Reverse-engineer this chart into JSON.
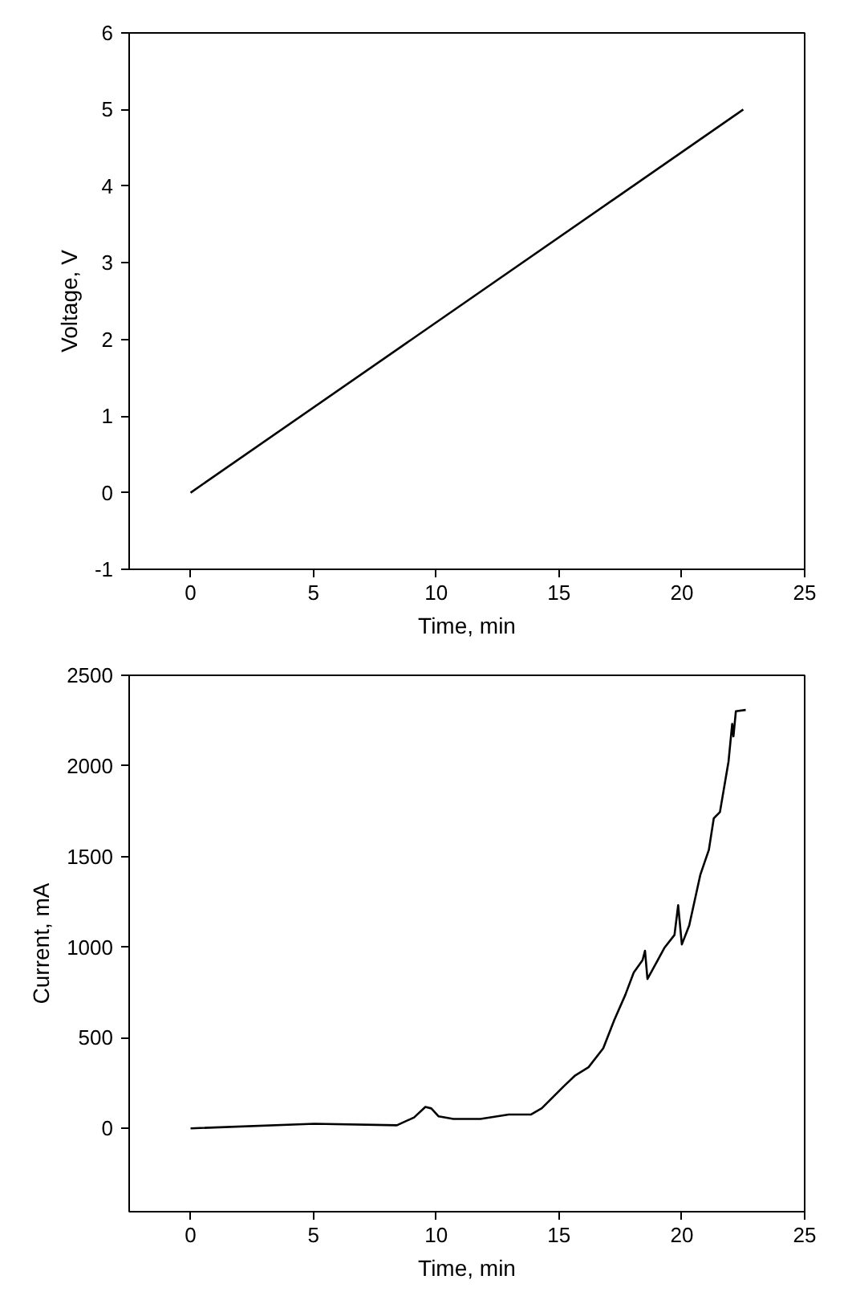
{
  "chart_data": [
    {
      "type": "line",
      "xlabel": "Time, min",
      "ylabel": "Voltage, V",
      "x": [
        0,
        22.5
      ],
      "series": [
        {
          "color": "#000000",
          "values": [
            0,
            5
          ]
        }
      ],
      "xlim": [
        -2.5,
        25
      ],
      "ylim": [
        -1,
        6
      ],
      "xticks": [
        0,
        5,
        10,
        15,
        20,
        25
      ],
      "yticks": [
        -1,
        0,
        1,
        2,
        3,
        4,
        5,
        6
      ],
      "grid": false
    },
    {
      "type": "line",
      "xlabel": "Time, min",
      "ylabel": "Current, mA",
      "x": [
        0,
        5.04,
        8.4,
        9.1,
        9.56,
        9.8,
        10.1,
        10.7,
        11.8,
        12.95,
        13.85,
        14.3,
        15.2,
        15.66,
        16.2,
        16.8,
        17.25,
        17.7,
        18.04,
        18.4,
        18.5,
        18.6,
        18.95,
        19.3,
        19.7,
        19.85,
        20.0,
        20.3,
        20.75,
        21.1,
        21.3,
        21.55,
        21.9,
        22.05,
        22.1,
        22.2,
        22.6
      ],
      "series": [
        {
          "color": "#000000",
          "values": [
            0,
            25,
            17,
            60,
            118,
            110,
            66,
            52,
            52,
            76,
            76,
            111,
            233,
            292,
            337,
            442,
            598,
            737,
            859,
            928,
            980,
            824,
            911,
            998,
            1067,
            1231,
            1015,
            1120,
            1398,
            1537,
            1711,
            1745,
            2024,
            2232,
            2163,
            2302,
            2309
          ]
        }
      ],
      "xlim": [
        -2.5,
        25
      ],
      "ylim": [
        -460,
        2500
      ],
      "xticks": [
        0,
        5,
        10,
        15,
        20,
        25
      ],
      "yticks": [
        0,
        500,
        1000,
        1500,
        2000,
        2500
      ],
      "grid": false
    }
  ]
}
